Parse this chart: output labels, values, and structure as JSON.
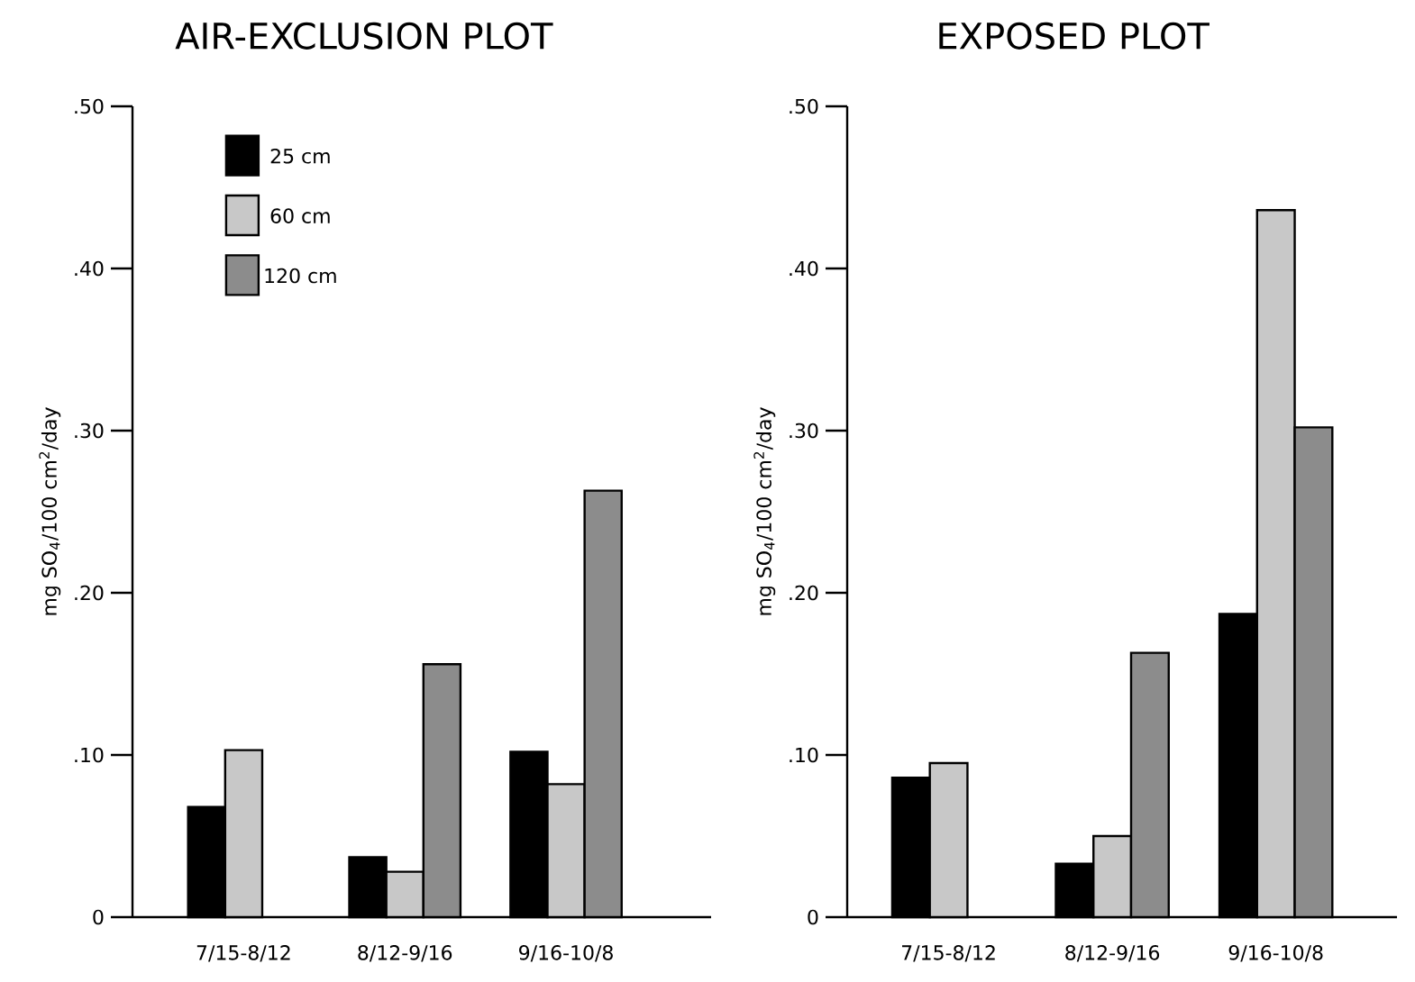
{
  "chart_data": [
    {
      "type": "bar",
      "title": "AIR-EXCLUSION PLOT",
      "ylabel": "mg SO$_{4}$/100 cm$^{2}$/day",
      "categories": [
        "7/15-8/12",
        "8/12-9/16",
        "9/16-10/8"
      ],
      "series": [
        {
          "name": "25 cm",
          "color": "#000000",
          "values": [
            0.068,
            0.037,
            0.102
          ]
        },
        {
          "name": "60 cm",
          "color": "#c8c8c8",
          "values": [
            0.103,
            0.028,
            0.082
          ]
        },
        {
          "name": "120 cm",
          "color": "#8c8c8c",
          "values": [
            null,
            0.156,
            0.263
          ]
        }
      ],
      "ylim": [
        0,
        0.5
      ],
      "yticks": [
        0,
        {
          "value": 0.1,
          "label": ".10"
        },
        {
          "value": 0.2,
          "label": ".20"
        },
        {
          "value": 0.3,
          "label": ".30"
        },
        {
          "value": 0.4,
          "label": ".40"
        },
        {
          "value": 0.5,
          "label": ".50"
        }
      ],
      "legend": "top left"
    },
    {
      "type": "bar",
      "title": "EXPOSED PLOT",
      "ylabel": "mg SO$_{4}$/100 cm$^{2}$/day",
      "categories": [
        "7/15-8/12",
        "8/12-9/16",
        "9/16-10/8"
      ],
      "series": [
        {
          "color": "#000000",
          "values": [
            0.086,
            0.033,
            0.187
          ]
        },
        {
          "color": "#c8c8c8",
          "values": [
            0.095,
            0.05,
            0.436
          ]
        },
        {
          "color": "#8c8c8c",
          "values": [
            null,
            0.163,
            0.302
          ]
        }
      ],
      "ylim": [
        0,
        0.5
      ],
      "yticks": [
        0,
        {
          "value": 0.1,
          "label": ".10"
        },
        {
          "value": 0.2,
          "label": ".20"
        },
        {
          "value": 0.3,
          "label": ".30"
        },
        {
          "value": 0.4,
          "label": ".40"
        },
        {
          "value": 0.5,
          "label": ".50"
        }
      ]
    }
  ]
}
